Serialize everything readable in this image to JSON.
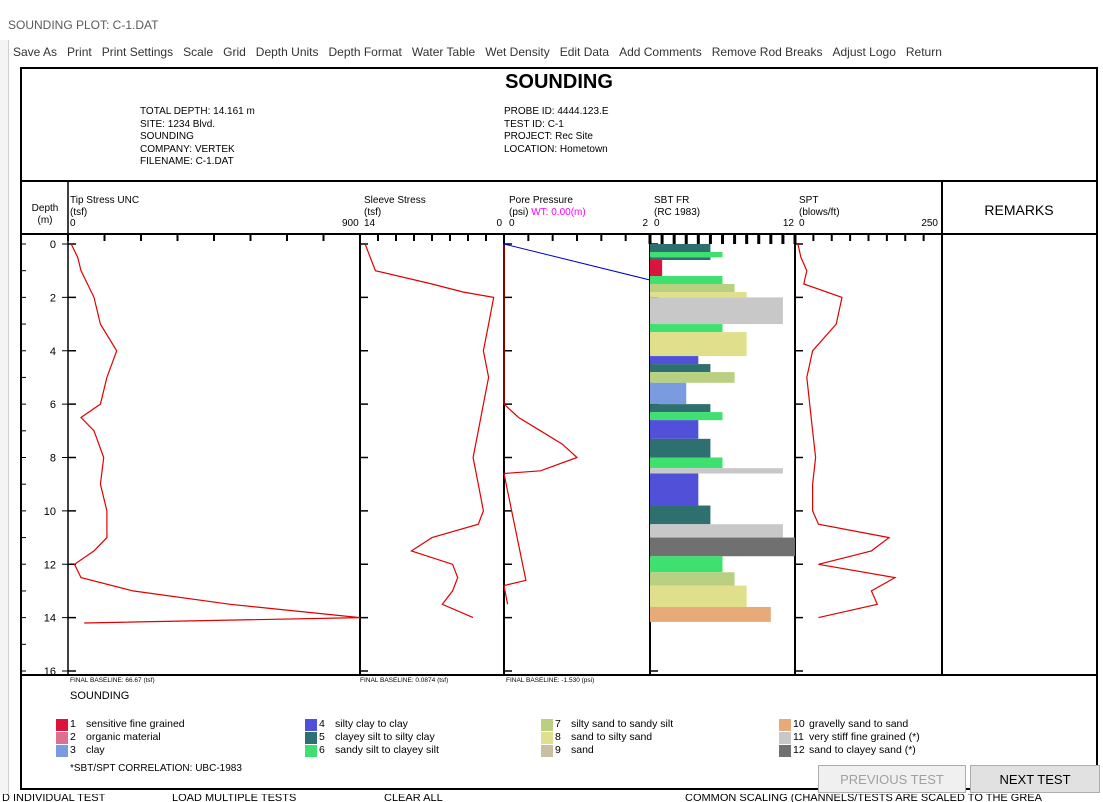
{
  "window": {
    "title": "SOUNDING PLOT: C-1.DAT"
  },
  "menu": [
    "Save As",
    "Print",
    "Print Settings",
    "Scale",
    "Grid",
    "Depth Units",
    "Depth Format",
    "Water Table",
    "Wet Density",
    "Edit Data",
    "Add Comments",
    "Remove Rod Breaks",
    "Adjust Logo",
    "Return"
  ],
  "header": {
    "title": "SOUNDING",
    "left": [
      "TOTAL DEPTH: 14.161 m",
      "SITE: 1234 Blvd.",
      "SOUNDING",
      "COMPANY: VERTEK",
      "FILENAME: C-1.DAT"
    ],
    "right": [
      "PROBE ID: 4444.123.E",
      "TEST ID: C-1",
      "PROJECT: Rec Site",
      "LOCATION: Hometown"
    ]
  },
  "columns": {
    "depth": {
      "l1": "Depth",
      "l2": "(m)"
    },
    "tip": {
      "l1": "Tip Stress UNC",
      "l2": "(tsf)",
      "min": "0",
      "max": "900"
    },
    "sleeve": {
      "l1": "Sleeve Stress",
      "l2": "(tsf)",
      "min": "14",
      "max": "0"
    },
    "pore": {
      "l1": "Pore Pressure",
      "l2a": "(psi)",
      "l2b": "WT: 0.00(m)",
      "min": "0",
      "max": "2"
    },
    "sbt": {
      "l1": "SBT FR",
      "l2": "(RC 1983)",
      "min": "0",
      "max": "12"
    },
    "spt": {
      "l1": "SPT",
      "l2": "(blows/ft)",
      "min": "0",
      "max": "250"
    },
    "remarks": "REMARKS"
  },
  "depth_labels": [
    "0",
    "2",
    "4",
    "6",
    "8",
    "10",
    "12",
    "14",
    "16"
  ],
  "baselines": {
    "tip": "FINAL BASELINE: 66.67 (tsf)",
    "sleeve": "FINAL BASELINE: 0.0874 (tsf)",
    "pore": "FINAL BASELINE: -1.530 (psi)"
  },
  "footer_title": "SOUNDING",
  "legend": [
    {
      "num": "1",
      "label": "sensitive fine grained",
      "color": "#dc143c"
    },
    {
      "num": "2",
      "label": "organic material",
      "color": "#db7093"
    },
    {
      "num": "3",
      "label": "clay",
      "color": "#7b9be0"
    },
    {
      "num": "4",
      "label": "silty clay to clay",
      "color": "#5050d8"
    },
    {
      "num": "5",
      "label": "clayey silt to silty clay",
      "color": "#2e6f70"
    },
    {
      "num": "6",
      "label": "sandy silt to clayey silt",
      "color": "#3ee070"
    },
    {
      "num": "7",
      "label": "silty sand to sandy silt",
      "color": "#b8d080"
    },
    {
      "num": "8",
      "label": "sand to silty sand",
      "color": "#e0e08c"
    },
    {
      "num": "9",
      "label": "sand",
      "color": "#c8c0a0"
    },
    {
      "num": "10",
      "label": "gravelly sand to sand",
      "color": "#e8aa78"
    },
    {
      "num": "11",
      "label": "very stiff fine grained (*)",
      "color": "#c8c8c8"
    },
    {
      "num": "12",
      "label": "sand to clayey sand (*)",
      "color": "#707070"
    }
  ],
  "correlation": "*SBT/SPT CORRELATION: UBC-1983",
  "buttons": {
    "prev": "PREVIOUS TEST",
    "next": "NEXT TEST"
  },
  "statusbar": [
    "D INDIVIDUAL TEST",
    "LOAD MULTIPLE TESTS",
    "CLEAR ALL",
    "COMMON SCALING (CHANNELS/TESTS ARE SCALED TO THE GREA"
  ],
  "colors": {
    "trace": "#e00000",
    "water_table": "#ff00ff",
    "pore_line": "#0000cc"
  },
  "chart_data": {
    "type": "line",
    "ylabel": "Depth (m)",
    "ylim": [
      0,
      16
    ],
    "tip_stress_tsf": {
      "xlim": [
        0,
        900
      ],
      "depth": [
        0,
        0.5,
        1,
        1.5,
        2,
        3,
        4,
        5,
        6,
        6.5,
        7,
        8,
        9,
        10,
        11,
        11.5,
        12,
        12.5,
        13,
        13.5,
        14,
        14.2
      ],
      "values": [
        10,
        30,
        40,
        60,
        80,
        100,
        150,
        120,
        100,
        40,
        80,
        110,
        100,
        120,
        120,
        80,
        20,
        40,
        200,
        500,
        900,
        50
      ]
    },
    "sleeve_stress_tsf": {
      "xlim": [
        14,
        0
      ],
      "depth": [
        0,
        1,
        1.5,
        1.8,
        2,
        3,
        4,
        5,
        6,
        7,
        8,
        9,
        10,
        10.5,
        11,
        11.5,
        12,
        12.5,
        13,
        13.5,
        14
      ],
      "values": [
        13.5,
        12.5,
        7,
        4,
        1,
        1.5,
        2,
        1.5,
        2,
        2.5,
        3,
        2.5,
        2,
        2.5,
        7,
        9,
        5,
        4.5,
        5,
        6,
        3
      ]
    },
    "pore_pressure_psi": {
      "xlim": [
        0,
        2
      ],
      "depth": [
        0,
        6,
        6.5,
        7,
        7.5,
        8,
        8.5,
        8.6,
        12.6,
        12.8,
        13.5
      ],
      "values": [
        0,
        0,
        0.2,
        0.5,
        0.8,
        1.0,
        0.5,
        0,
        0.3,
        0,
        0.05
      ]
    },
    "spt_blows_ft": {
      "xlim": [
        0,
        250
      ],
      "depth": [
        0,
        0.5,
        1,
        1.5,
        2,
        3,
        4,
        5,
        6,
        7,
        8,
        9,
        10,
        10.5,
        11,
        11.5,
        12,
        12.5,
        13,
        13.5,
        14
      ],
      "values": [
        5,
        10,
        20,
        15,
        80,
        70,
        30,
        20,
        25,
        30,
        35,
        30,
        30,
        40,
        160,
        130,
        40,
        170,
        130,
        140,
        40
      ]
    },
    "sbt_zones": [
      {
        "depth": 0.0,
        "zone": 5
      },
      {
        "depth": 0.3,
        "zone": 6
      },
      {
        "depth": 0.5,
        "zone": 5
      },
      {
        "depth": 0.6,
        "zone": 1
      },
      {
        "depth": 1.2,
        "zone": 6
      },
      {
        "depth": 1.5,
        "zone": 7
      },
      {
        "depth": 1.8,
        "zone": 8
      },
      {
        "depth": 2.0,
        "zone": 11
      },
      {
        "depth": 3.0,
        "zone": 6
      },
      {
        "depth": 3.3,
        "zone": 8
      },
      {
        "depth": 4.2,
        "zone": 4
      },
      {
        "depth": 4.5,
        "zone": 5
      },
      {
        "depth": 4.8,
        "zone": 7
      },
      {
        "depth": 5.2,
        "zone": 3
      },
      {
        "depth": 6.0,
        "zone": 5
      },
      {
        "depth": 6.3,
        "zone": 6
      },
      {
        "depth": 6.6,
        "zone": 4
      },
      {
        "depth": 7.3,
        "zone": 5
      },
      {
        "depth": 8.0,
        "zone": 6
      },
      {
        "depth": 8.4,
        "zone": 11
      },
      {
        "depth": 8.6,
        "zone": 4
      },
      {
        "depth": 9.8,
        "zone": 5
      },
      {
        "depth": 10.5,
        "zone": 11
      },
      {
        "depth": 11.0,
        "zone": 12
      },
      {
        "depth": 11.7,
        "zone": 6
      },
      {
        "depth": 12.3,
        "zone": 7
      },
      {
        "depth": 12.8,
        "zone": 8
      },
      {
        "depth": 13.6,
        "zone": 10
      },
      {
        "depth": 14.16,
        "zone": 10
      }
    ]
  }
}
